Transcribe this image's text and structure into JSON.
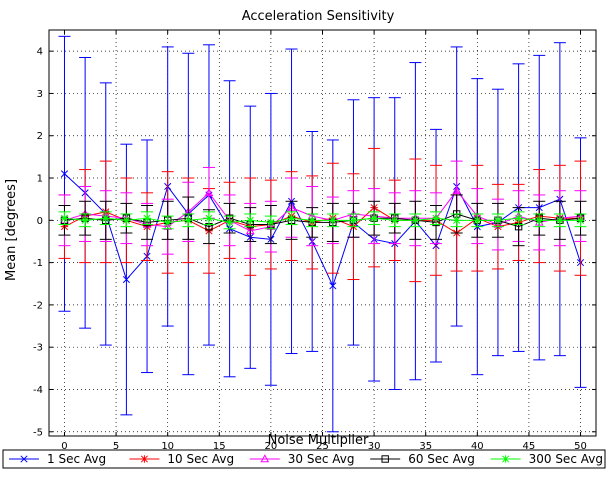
{
  "chart_data": {
    "type": "line",
    "title": "Acceleration Sensitivity",
    "xlabel": "Noise Multiplier",
    "ylabel": "Mean [degrees]",
    "xlim": [
      -1.5,
      51.5
    ],
    "ylim": [
      -5.1,
      4.5
    ],
    "grid": true,
    "legend_position": "bottom",
    "x_ticks": [
      0,
      5,
      10,
      15,
      20,
      25,
      30,
      35,
      40,
      45,
      50
    ],
    "y_ticks": [
      -5,
      -4,
      -3,
      -2,
      -1,
      0,
      1,
      2,
      3,
      4
    ],
    "x": [
      0,
      2,
      4,
      6,
      8,
      10,
      12,
      14,
      16,
      18,
      20,
      22,
      24,
      26,
      28,
      30,
      32,
      34,
      36,
      38,
      40,
      42,
      44,
      46,
      48,
      50
    ],
    "series": [
      {
        "name": "1 Sec Avg",
        "color": "#0000ff",
        "marker": "x",
        "values": [
          1.1,
          0.65,
          0.15,
          -1.4,
          -0.85,
          0.8,
          0.15,
          0.6,
          -0.2,
          -0.4,
          -0.45,
          0.45,
          -0.5,
          -1.55,
          -0.05,
          -0.45,
          -0.55,
          -0.02,
          -0.6,
          0.8,
          -0.15,
          -0.05,
          0.3,
          0.3,
          0.5,
          -1.0
        ],
        "error": [
          3.25,
          3.2,
          3.1,
          3.2,
          2.75,
          3.3,
          3.8,
          3.55,
          3.5,
          3.1,
          3.45,
          3.6,
          2.6,
          3.45,
          2.9,
          3.35,
          3.45,
          3.75,
          2.75,
          3.3,
          3.5,
          3.15,
          3.4,
          3.6,
          3.7,
          2.95
        ]
      },
      {
        "name": "10 Sec Avg",
        "color": "#ff0000",
        "marker": "*",
        "values": [
          -0.15,
          0.1,
          0.2,
          0.0,
          -0.15,
          -0.05,
          0.0,
          -0.25,
          0.0,
          -0.15,
          -0.1,
          0.1,
          -0.05,
          0.05,
          -0.15,
          0.3,
          0.0,
          0.0,
          0.0,
          -0.3,
          0.05,
          -0.15,
          -0.05,
          0.1,
          0.05,
          0.05
        ],
        "error": [
          0.75,
          1.1,
          1.2,
          1.0,
          0.8,
          1.2,
          1.0,
          1.0,
          0.9,
          1.15,
          1.05,
          1.05,
          1.1,
          1.3,
          1.25,
          1.4,
          0.95,
          1.45,
          1.3,
          0.9,
          1.25,
          1.0,
          0.9,
          1.1,
          1.25,
          1.35
        ]
      },
      {
        "name": "30 Sec Avg",
        "color": "#ff00ff",
        "marker": "triangle",
        "values": [
          0.0,
          0.15,
          0.1,
          0.05,
          -0.1,
          -0.15,
          0.2,
          0.65,
          0.0,
          -0.25,
          -0.15,
          0.3,
          0.1,
          0.0,
          0.15,
          0.1,
          0.05,
          0.05,
          0.05,
          0.7,
          0.1,
          -0.1,
          0.1,
          -0.05,
          0.05,
          0.1
        ],
        "error": [
          0.6,
          0.65,
          0.6,
          0.6,
          0.5,
          0.65,
          0.7,
          0.6,
          0.6,
          0.65,
          0.6,
          0.7,
          0.7,
          0.55,
          0.55,
          0.65,
          0.6,
          0.65,
          0.6,
          0.7,
          0.65,
          0.6,
          0.6,
          0.65,
          0.65,
          0.6
        ]
      },
      {
        "name": "60 Sec Avg",
        "color": "#000000",
        "marker": "square",
        "values": [
          0.0,
          0.05,
          0.0,
          0.05,
          -0.05,
          0.0,
          0.05,
          -0.15,
          0.05,
          -0.1,
          -0.1,
          0.0,
          -0.05,
          -0.05,
          0.0,
          0.05,
          0.05,
          0.0,
          -0.05,
          0.15,
          0.0,
          0.0,
          -0.15,
          0.05,
          0.0,
          0.05
        ],
        "error": [
          0.35,
          0.4,
          0.45,
          0.35,
          0.4,
          0.45,
          0.5,
          0.4,
          0.35,
          0.4,
          0.45,
          0.45,
          0.35,
          0.45,
          0.4,
          0.4,
          0.35,
          0.45,
          0.4,
          0.45,
          0.4,
          0.4,
          0.45,
          0.4,
          0.45,
          0.4
        ]
      },
      {
        "name": "300 Sec Avg",
        "color": "#00ff00",
        "marker": "*",
        "values": [
          0.05,
          0.0,
          0.05,
          0.0,
          0.05,
          -0.05,
          0.0,
          0.05,
          -0.05,
          0.0,
          -0.05,
          0.05,
          0.0,
          0.0,
          0.0,
          0.05,
          0.0,
          0.0,
          0.05,
          0.0,
          0.0,
          0.0,
          0.05,
          0.0,
          0.0,
          0.0
        ],
        "error": [
          0.15,
          0.15,
          0.15,
          0.15,
          0.15,
          0.15,
          0.15,
          0.15,
          0.15,
          0.15,
          0.15,
          0.15,
          0.15,
          0.15,
          0.15,
          0.15,
          0.15,
          0.15,
          0.15,
          0.15,
          0.15,
          0.15,
          0.15,
          0.15,
          0.15,
          0.15
        ]
      }
    ]
  }
}
